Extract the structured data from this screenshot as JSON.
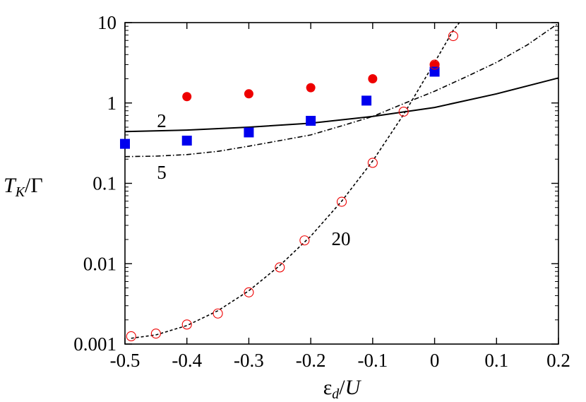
{
  "chart_data": {
    "type": "scatter",
    "title": "",
    "xlabel": "εd/U",
    "ylabel": "TK/Γ",
    "xlim": [
      -0.5,
      0.2
    ],
    "ylim": [
      0.001,
      10
    ],
    "yscale": "log",
    "grid": false,
    "x_ticks": [
      -0.5,
      -0.4,
      -0.3,
      -0.2,
      -0.1,
      0,
      0.1,
      0.2
    ],
    "x_tick_labels": [
      "-0.5",
      "-0.4",
      "-0.3",
      "-0.2",
      "-0.1",
      "0",
      "0.1",
      "0.2"
    ],
    "y_ticks": [
      0.001,
      0.01,
      0.1,
      1,
      10
    ],
    "y_tick_labels": [
      "0.001",
      "0.01",
      "0.1",
      "1",
      "10"
    ],
    "curve_labels": [
      "2",
      "5",
      "20"
    ],
    "series": [
      {
        "marker": "filled-circle",
        "color": "#ee0000",
        "x": [
          -0.4,
          -0.3,
          -0.2,
          -0.1,
          0
        ],
        "y": [
          1.2,
          1.3,
          1.55,
          2.0,
          2.95
        ]
      },
      {
        "marker": "filled-square",
        "color": "#0000ee",
        "x": [
          -0.5,
          -0.4,
          -0.3,
          -0.2,
          -0.11,
          0
        ],
        "y": [
          0.31,
          0.34,
          0.43,
          0.6,
          1.07,
          2.45
        ]
      },
      {
        "marker": "open-circle",
        "color": "#ee0000",
        "x": [
          -0.49,
          -0.45,
          -0.4,
          -0.35,
          -0.3,
          -0.25,
          -0.21,
          -0.15,
          -0.1,
          -0.05,
          0,
          0.03
        ],
        "y": [
          0.00125,
          0.00135,
          0.00175,
          0.0024,
          0.0044,
          0.009,
          0.0195,
          0.059,
          0.18,
          0.78,
          3.0,
          6.8
        ]
      },
      {
        "name": "2",
        "line": "solid",
        "color": "#000000",
        "x": [
          -0.5,
          -0.4,
          -0.3,
          -0.2,
          -0.1,
          0,
          0.1,
          0.2
        ],
        "y": [
          0.44,
          0.46,
          0.5,
          0.56,
          0.68,
          0.88,
          1.3,
          2.05
        ]
      },
      {
        "name": "5",
        "line": "dash-dot",
        "color": "#000000",
        "x": [
          -0.5,
          -0.45,
          -0.4,
          -0.35,
          -0.3,
          -0.25,
          -0.2,
          -0.15,
          -0.1,
          -0.05,
          0,
          0.05,
          0.1,
          0.15,
          0.2
        ],
        "y": [
          0.215,
          0.218,
          0.228,
          0.25,
          0.29,
          0.34,
          0.4,
          0.52,
          0.68,
          0.98,
          1.4,
          2.1,
          3.2,
          5.3,
          9.8
        ]
      },
      {
        "name": "20",
        "line": "dashed",
        "color": "#000000",
        "x": [
          -0.49,
          -0.45,
          -0.4,
          -0.35,
          -0.3,
          -0.25,
          -0.2,
          -0.15,
          -0.1,
          -0.05,
          0,
          0.03,
          0.04
        ],
        "y": [
          0.00118,
          0.0013,
          0.0017,
          0.0026,
          0.0046,
          0.0095,
          0.022,
          0.06,
          0.19,
          0.72,
          3.2,
          8.0,
          10
        ]
      }
    ]
  }
}
